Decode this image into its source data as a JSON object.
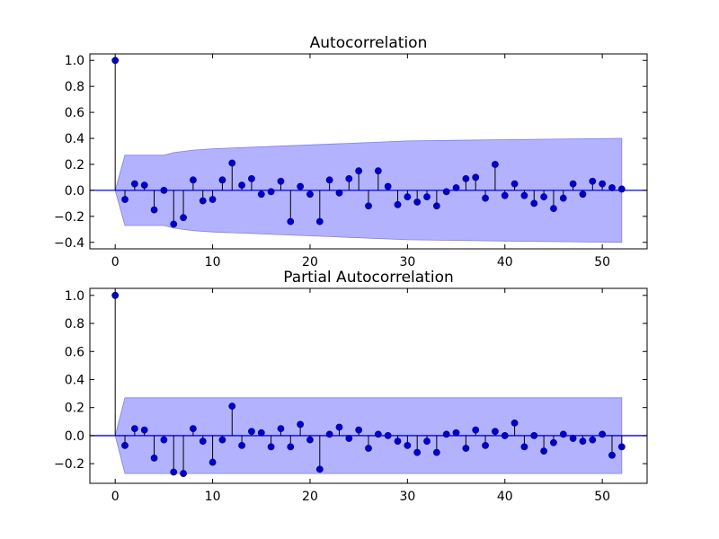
{
  "colors": {
    "marker": "#0000cc",
    "band_fill": "#b2b2ff",
    "band_edge": "#8080e6",
    "zero_line": "#0000ff"
  },
  "chart_data": [
    {
      "type": "stem",
      "title": "Autocorrelation",
      "xlim": [
        -2.6,
        54.6
      ],
      "ylim": [
        -0.45,
        1.05
      ],
      "xticks": [
        0,
        10,
        20,
        30,
        40,
        50
      ],
      "yticks": [
        -0.4,
        -0.2,
        0.0,
        0.2,
        0.4,
        0.6,
        0.8,
        1.0
      ],
      "ytick_labels": [
        "−0.4",
        "−0.2",
        "0.0",
        "0.2",
        "0.4",
        "0.6",
        "0.8",
        "1.0"
      ],
      "lags": [
        0,
        1,
        2,
        3,
        4,
        5,
        6,
        7,
        8,
        9,
        10,
        11,
        12,
        13,
        14,
        15,
        16,
        17,
        18,
        19,
        20,
        21,
        22,
        23,
        24,
        25,
        26,
        27,
        28,
        29,
        30,
        31,
        32,
        33,
        34,
        35,
        36,
        37,
        38,
        39,
        40,
        41,
        42,
        43,
        44,
        45,
        46,
        47,
        48,
        49,
        50,
        51,
        52
      ],
      "values": [
        1.0,
        -0.07,
        0.05,
        0.04,
        -0.15,
        0.0,
        -0.26,
        -0.21,
        0.08,
        -0.08,
        -0.07,
        0.08,
        0.21,
        0.04,
        0.09,
        -0.03,
        -0.01,
        0.07,
        -0.24,
        0.03,
        -0.03,
        -0.24,
        0.08,
        -0.02,
        0.09,
        0.15,
        -0.12,
        0.15,
        0.03,
        -0.11,
        -0.05,
        -0.09,
        -0.05,
        -0.12,
        -0.01,
        0.02,
        0.09,
        0.1,
        -0.06,
        0.2,
        -0.04,
        0.05,
        -0.04,
        -0.1,
        -0.05,
        -0.14,
        -0.06,
        0.05,
        -0.03,
        0.07,
        0.05,
        0.02,
        0.01
      ],
      "confidence_band": {
        "lags": [
          0,
          1,
          5,
          6,
          8,
          10,
          20,
          30,
          40,
          52
        ],
        "upper": [
          0.0,
          0.27,
          0.27,
          0.29,
          0.31,
          0.32,
          0.35,
          0.38,
          0.39,
          0.4
        ],
        "lower": [
          0.0,
          -0.27,
          -0.27,
          -0.29,
          -0.31,
          -0.32,
          -0.35,
          -0.38,
          -0.39,
          -0.4
        ]
      }
    },
    {
      "type": "stem",
      "title": "Partial Autocorrelation",
      "xlim": [
        -2.6,
        54.6
      ],
      "ylim": [
        -0.34,
        1.05
      ],
      "xticks": [
        0,
        10,
        20,
        30,
        40,
        50
      ],
      "yticks": [
        -0.2,
        0.0,
        0.2,
        0.4,
        0.6,
        0.8,
        1.0
      ],
      "ytick_labels": [
        "−0.2",
        "0.0",
        "0.2",
        "0.4",
        "0.6",
        "0.8",
        "1.0"
      ],
      "lags": [
        0,
        1,
        2,
        3,
        4,
        5,
        6,
        7,
        8,
        9,
        10,
        11,
        12,
        13,
        14,
        15,
        16,
        17,
        18,
        19,
        20,
        21,
        22,
        23,
        24,
        25,
        26,
        27,
        28,
        29,
        30,
        31,
        32,
        33,
        34,
        35,
        36,
        37,
        38,
        39,
        40,
        41,
        42,
        43,
        44,
        45,
        46,
        47,
        48,
        49,
        50,
        51,
        52
      ],
      "values": [
        1.0,
        -0.07,
        0.05,
        0.04,
        -0.16,
        -0.03,
        -0.26,
        -0.27,
        0.05,
        -0.04,
        -0.19,
        -0.03,
        0.21,
        -0.07,
        0.03,
        0.02,
        -0.08,
        0.05,
        -0.08,
        0.08,
        -0.03,
        -0.24,
        0.01,
        0.06,
        -0.02,
        0.04,
        -0.09,
        0.01,
        0.0,
        -0.04,
        -0.07,
        -0.12,
        -0.04,
        -0.12,
        0.01,
        0.02,
        -0.09,
        0.04,
        -0.07,
        0.03,
        0.0,
        0.09,
        -0.08,
        0.0,
        -0.11,
        -0.05,
        0.01,
        -0.02,
        -0.04,
        -0.03,
        0.01,
        -0.14,
        -0.08
      ],
      "confidence_band": {
        "lags": [
          0,
          1,
          52
        ],
        "upper": [
          0.0,
          0.27,
          0.27
        ],
        "lower": [
          0.0,
          -0.27,
          -0.27
        ]
      }
    }
  ]
}
